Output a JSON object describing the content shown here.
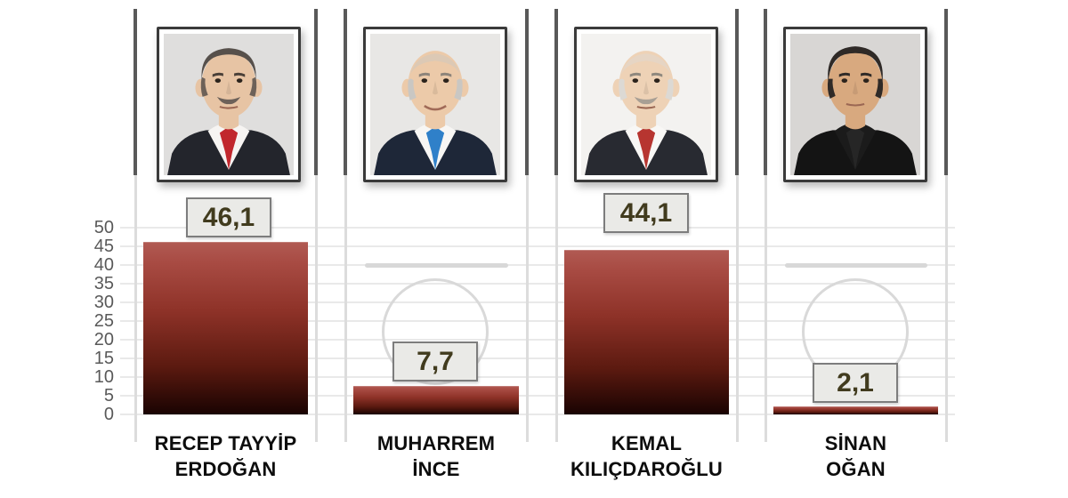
{
  "chart_data": {
    "type": "bar",
    "title": "",
    "categories": [
      "RECEP TAYYİP ERDOĞAN",
      "MUHARREM İNCE",
      "KEMAL KILIÇDAROĞLU",
      "SİNAN OĞAN"
    ],
    "values": [
      46.1,
      7.7,
      44.1,
      2.1
    ],
    "data_labels": [
      "46,1",
      "7,7",
      "44,1",
      "2,1"
    ],
    "xlabel": "",
    "ylabel": "",
    "ylim": [
      0,
      50
    ],
    "ytick_interval": 5,
    "yticks": [
      50,
      45,
      40,
      35,
      30,
      25,
      20,
      15,
      10,
      5,
      0
    ],
    "grid": true,
    "legend": false,
    "decimal_separator": ",",
    "bar_gradient_top": "#b15a53",
    "bar_gradient_bottom": "#190302"
  },
  "axis": {
    "yticks": [
      "50",
      "45",
      "40",
      "35",
      "30",
      "25",
      "20",
      "15",
      "10",
      "5",
      "0"
    ]
  },
  "colors": {
    "badge_bg": "#eaeae7",
    "badge_border": "#7d7d7d",
    "badge_text": "#413b1e",
    "axis_text": "#595959",
    "separator_dark": "#595959",
    "separator_light": "#dcdcdc",
    "gridline": "#e8e8e8",
    "decor_line": "#d8d8d8",
    "name_text": "#0d0d0d",
    "photo_border": "#3a3a3a"
  },
  "columns": [
    {
      "name_line1": "RECEP TAYYİP",
      "name_line2": "ERDOĞAN",
      "value": 46.1,
      "value_label": "46,1",
      "avatar": {
        "bg": "#dfdedd",
        "skin": "#e7c4a4",
        "hair": "#57504b",
        "brow": "#4a4038",
        "suit": "#23252c",
        "shirt": "#f6f4f2",
        "tie": "#c1272d",
        "mustache": "#6d6159",
        "glasses": false,
        "smile": false,
        "hair_style": "receding"
      }
    },
    {
      "name_line1": "MUHARREM",
      "name_line2": "İNCE",
      "value": 7.7,
      "value_label": "7,7",
      "avatar": {
        "bg": "#e8e7e5",
        "skin": "#eccaa9",
        "hair": "#c9c7c3",
        "brow": "#8d847a",
        "suit": "#1e2738",
        "shirt": "#f7f6f4",
        "tie": "#2f80c9",
        "mustache": null,
        "glasses": false,
        "smile": true,
        "hair_style": "bald"
      }
    },
    {
      "name_line1": "KEMAL",
      "name_line2": "KILIÇDAROĞLU",
      "value": 44.1,
      "value_label": "44,1",
      "avatar": {
        "bg": "#f3f2f0",
        "skin": "#eed2b6",
        "hair": "#dcd9d4",
        "brow": "#8f887e",
        "suit": "#282a31",
        "shirt": "#f8f7f5",
        "tie": "#b73530",
        "mustache": "#a89f94",
        "glasses": false,
        "smile": false,
        "hair_style": "bald"
      }
    },
    {
      "name_line1": "SİNAN",
      "name_line2": "OĞAN",
      "value": 2.1,
      "value_label": "2,1",
      "avatar": {
        "bg": "#d8d6d4",
        "skin": "#d8a97f",
        "hair": "#2f2a27",
        "brow": "#2f2a27",
        "suit": "#141414",
        "shirt": "#1b1b1b",
        "tie": "#262626",
        "mustache": null,
        "glasses": false,
        "smile": false,
        "hair_style": "full"
      }
    }
  ]
}
